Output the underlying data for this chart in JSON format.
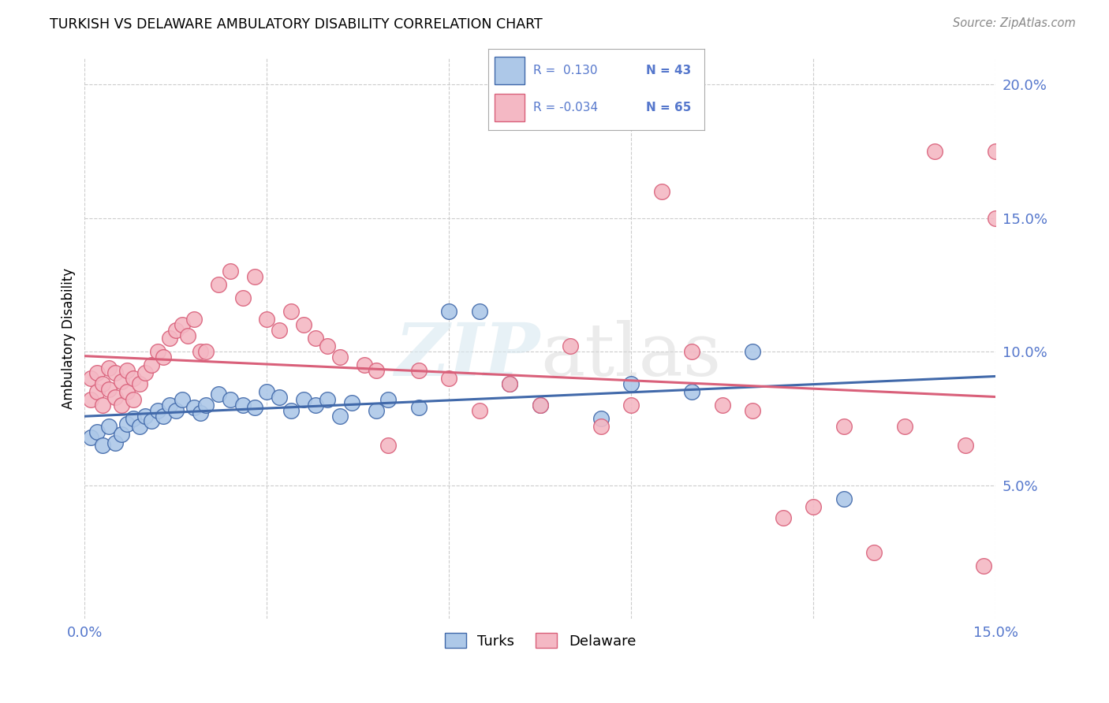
{
  "title": "TURKISH VS DELAWARE AMBULATORY DISABILITY CORRELATION CHART",
  "source": "Source: ZipAtlas.com",
  "ylabel": "Ambulatory Disability",
  "x_min": 0.0,
  "x_max": 0.15,
  "y_min": 0.0,
  "y_max": 0.21,
  "x_ticks": [
    0.0,
    0.03,
    0.06,
    0.09,
    0.12,
    0.15
  ],
  "y_ticks_right": [
    0.05,
    0.1,
    0.15,
    0.2
  ],
  "y_tick_labels_right": [
    "5.0%",
    "10.0%",
    "15.0%",
    "20.0%"
  ],
  "grid_color": "#cccccc",
  "background_color": "#ffffff",
  "legend_r1": "R =  0.130",
  "legend_n1": "N = 43",
  "legend_r2": "R = -0.034",
  "legend_n2": "N = 65",
  "color_blue": "#adc8e8",
  "color_pink": "#f4b8c4",
  "line_blue": "#4169aa",
  "line_pink": "#d9607a",
  "axis_color": "#5577cc",
  "turks_x": [
    0.001,
    0.002,
    0.003,
    0.004,
    0.005,
    0.006,
    0.007,
    0.008,
    0.009,
    0.01,
    0.011,
    0.012,
    0.013,
    0.014,
    0.015,
    0.016,
    0.018,
    0.019,
    0.02,
    0.022,
    0.024,
    0.026,
    0.028,
    0.03,
    0.032,
    0.034,
    0.036,
    0.038,
    0.04,
    0.042,
    0.044,
    0.048,
    0.05,
    0.055,
    0.06,
    0.065,
    0.07,
    0.075,
    0.085,
    0.09,
    0.1,
    0.11,
    0.125
  ],
  "turks_y": [
    0.068,
    0.07,
    0.065,
    0.072,
    0.066,
    0.069,
    0.073,
    0.075,
    0.072,
    0.076,
    0.074,
    0.078,
    0.076,
    0.08,
    0.078,
    0.082,
    0.079,
    0.077,
    0.08,
    0.084,
    0.082,
    0.08,
    0.079,
    0.085,
    0.083,
    0.078,
    0.082,
    0.08,
    0.082,
    0.076,
    0.081,
    0.078,
    0.082,
    0.079,
    0.115,
    0.115,
    0.088,
    0.08,
    0.075,
    0.088,
    0.085,
    0.1,
    0.045
  ],
  "delaware_x": [
    0.001,
    0.001,
    0.002,
    0.002,
    0.003,
    0.003,
    0.004,
    0.004,
    0.005,
    0.005,
    0.006,
    0.006,
    0.007,
    0.007,
    0.008,
    0.008,
    0.009,
    0.01,
    0.011,
    0.012,
    0.013,
    0.014,
    0.015,
    0.016,
    0.017,
    0.018,
    0.019,
    0.02,
    0.022,
    0.024,
    0.026,
    0.028,
    0.03,
    0.032,
    0.034,
    0.036,
    0.038,
    0.04,
    0.042,
    0.046,
    0.048,
    0.05,
    0.055,
    0.06,
    0.065,
    0.07,
    0.075,
    0.08,
    0.085,
    0.09,
    0.095,
    0.1,
    0.105,
    0.11,
    0.115,
    0.12,
    0.125,
    0.13,
    0.135,
    0.14,
    0.145,
    0.148,
    0.15,
    0.15,
    0.152
  ],
  "delaware_y": [
    0.082,
    0.09,
    0.085,
    0.092,
    0.08,
    0.088,
    0.086,
    0.094,
    0.083,
    0.092,
    0.08,
    0.089,
    0.085,
    0.093,
    0.082,
    0.09,
    0.088,
    0.092,
    0.095,
    0.1,
    0.098,
    0.105,
    0.108,
    0.11,
    0.106,
    0.112,
    0.1,
    0.1,
    0.125,
    0.13,
    0.12,
    0.128,
    0.112,
    0.108,
    0.115,
    0.11,
    0.105,
    0.102,
    0.098,
    0.095,
    0.093,
    0.065,
    0.093,
    0.09,
    0.078,
    0.088,
    0.08,
    0.102,
    0.072,
    0.08,
    0.16,
    0.1,
    0.08,
    0.078,
    0.038,
    0.042,
    0.072,
    0.025,
    0.072,
    0.175,
    0.065,
    0.02,
    0.15,
    0.175,
    0.018
  ]
}
